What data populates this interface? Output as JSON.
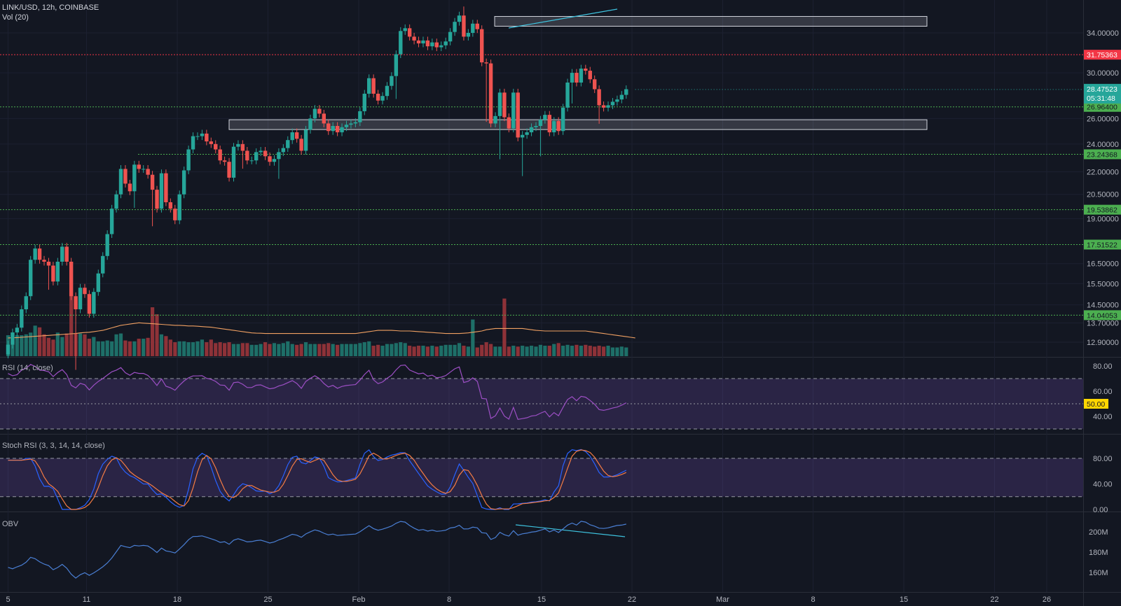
{
  "header": {
    "symbol": "LINK/USD, 12h, COINBASE",
    "volume_label": "Vol (20)"
  },
  "colors": {
    "up": "#26a69a",
    "down": "#ef5350",
    "up_vol": "#1e6f68",
    "down_vol": "#8e3238",
    "ma": "#f0a062",
    "rsi": "#9c4fc4",
    "stoch_k": "#2962ff",
    "stoch_d": "#f57c44",
    "obv": "#4a7fd4",
    "support": "#4caf50",
    "resistance": "#f23645",
    "price_tag": "#26a69a",
    "zone": "#d1d4dc",
    "divergence": "#3ec4e0",
    "band": "#7e57c2",
    "rsi_mid_tag": "#ffd600"
  },
  "chart_data": [
    {
      "type": "candlestick",
      "symbol": "LINK/USD",
      "interval": "12h",
      "exchange": "COINBASE",
      "x_ticks": [
        "5",
        "11",
        "18",
        "25",
        "Feb",
        "8",
        "15",
        "22",
        "Mar",
        "8",
        "15",
        "22",
        "26"
      ],
      "y_ticks": [
        "34.00000",
        "30.00000",
        "26.00000",
        "24.00000",
        "22.00000",
        "20.50000",
        "19.00000",
        "16.50000",
        "15.50000",
        "14.50000",
        "13.70000",
        "12.90000"
      ],
      "y_scale": "log",
      "horizontal_levels": [
        {
          "price": "31.75363",
          "kind": "resistance"
        },
        {
          "price": "26.96400",
          "kind": "support"
        },
        {
          "price": "23.24368",
          "kind": "support"
        },
        {
          "price": "19.53862",
          "kind": "support"
        },
        {
          "price": "17.51522",
          "kind": "support"
        },
        {
          "price": "14.04053",
          "kind": "support"
        }
      ],
      "zones": [
        {
          "low": 35.0,
          "high": 35.8
        },
        {
          "low": 25.2,
          "high": 25.9
        }
      ],
      "current_price": "28.47523",
      "countdown": "05:31:48",
      "closes": [
        12.8,
        13.3,
        13.5,
        14.3,
        14.9,
        16.7,
        17.3,
        16.7,
        16.6,
        16.4,
        15.6,
        16.6,
        17.4,
        16.6,
        14.9,
        14.3,
        15.3,
        15.0,
        14.1,
        15.1,
        16.0,
        16.9,
        18.1,
        19.6,
        20.5,
        22.2,
        21.2,
        20.7,
        22.5,
        22.2,
        22.2,
        21.8,
        20.8,
        19.6,
        21.9,
        20.0,
        19.6,
        18.9,
        20.5,
        22.1,
        23.6,
        24.6,
        24.6,
        24.8,
        24.2,
        24.0,
        23.6,
        22.8,
        22.7,
        21.6,
        23.8,
        24.0,
        23.5,
        22.8,
        22.8,
        23.4,
        23.5,
        23.1,
        22.7,
        22.9,
        23.4,
        23.7,
        24.3,
        24.9,
        24.4,
        23.5,
        25.1,
        26.0,
        26.8,
        26.4,
        25.6,
        25.0,
        25.4,
        24.9,
        25.3,
        25.5,
        25.6,
        25.7,
        26.6,
        28.1,
        29.5,
        28.1,
        27.5,
        27.9,
        28.8,
        29.7,
        31.8,
        34.2,
        34.5,
        33.6,
        33.2,
        32.9,
        33.2,
        32.6,
        33.0,
        32.5,
        32.7,
        33.1,
        34.1,
        35.2,
        35.9,
        33.6,
        34.0,
        35.0,
        34.4,
        31.0,
        30.9,
        25.6,
        26.2,
        28.2,
        26.1,
        25.2,
        28.2,
        24.5,
        24.7,
        24.9,
        25.3,
        25.4,
        25.9,
        26.3,
        24.9,
        25.8,
        25.0,
        26.9,
        29.1,
        30.0,
        29.1,
        30.4,
        30.2,
        29.4,
        28.5,
        27.1,
        26.9,
        27.1,
        27.4,
        27.6,
        28.0,
        28.5
      ],
      "volume_ma": [
        14.5,
        14.6,
        14.8,
        15.0,
        15.3,
        15.5,
        15.8,
        16.0,
        16.3,
        16.5,
        16.8,
        17.0,
        17.3,
        17.5,
        17.8,
        18.0,
        18.5,
        18.8,
        19.0,
        19.5,
        20.0,
        20.5,
        21.5,
        22.5,
        23.5,
        24.5,
        25.0,
        25.5,
        26.0,
        26.5,
        26.2,
        26.0,
        25.8,
        25.5,
        25.3,
        25.0,
        24.8,
        24.5,
        24.5,
        24.3,
        24.0,
        24.0,
        23.8,
        23.5,
        23.2,
        23.0,
        22.5,
        22.0,
        21.5,
        21.0,
        20.5,
        20.0,
        19.5,
        19.0,
        18.5,
        18.3,
        18.2,
        18.0,
        18.0,
        18.0,
        18.0,
        18.0,
        18.0,
        18.0,
        18.0,
        18.0,
        18.0,
        18.0,
        18.0,
        18.0,
        18.0,
        18.0,
        18.0,
        18.0,
        18.0,
        18.0,
        18.0,
        18.0,
        18.5,
        19.0,
        19.5,
        20.0,
        20.5,
        20.5,
        20.5,
        20.5,
        20.3,
        20.0,
        20.0,
        20.0,
        19.8,
        19.5,
        19.3,
        19.0,
        18.8,
        18.5,
        18.3,
        18.0,
        18.0,
        18.0,
        18.0,
        18.2,
        18.5,
        19.0,
        19.5,
        20.0,
        21.0,
        21.5,
        22.0,
        22.0,
        22.0,
        22.0,
        22.0,
        22.0,
        22.0,
        21.5,
        21.0,
        20.5,
        20.3,
        20.0,
        20.0,
        20.0,
        20.0,
        20.0,
        20.0,
        20.0,
        20.0,
        20.0,
        20.0,
        19.5,
        19.0,
        18.5,
        18.0,
        17.5,
        17.0,
        16.5,
        16.0,
        15.5,
        15.0,
        14.5
      ]
    },
    {
      "type": "line",
      "name": "RSI (14, close)",
      "y_ticks": [
        "80.00",
        "60.00",
        "40.00"
      ],
      "mid_label": "50.00",
      "band": [
        30,
        70
      ],
      "values": [
        74.0,
        72.3,
        73.1,
        76.7,
        78.2,
        81.2,
        79.6,
        76.7,
        76.4,
        75.4,
        71.6,
        74.8,
        77.1,
        73.2,
        64.6,
        62.6,
        66.2,
        65.1,
        61.0,
        64.8,
        67.7,
        70.0,
        72.8,
        75.4,
        76.7,
        78.7,
        74.6,
        72.6,
        74.9,
        74.1,
        74.1,
        72.5,
        68.9,
        64.5,
        69.7,
        63.9,
        62.7,
        60.8,
        64.7,
        68.1,
        70.6,
        72.1,
        72.1,
        72.3,
        70.2,
        69.4,
        67.8,
        64.9,
        64.6,
        60.8,
        66.8,
        67.2,
        65.5,
        62.9,
        62.9,
        64.7,
        65.0,
        63.4,
        61.9,
        62.5,
        64.1,
        65.1,
        66.8,
        68.4,
        66.1,
        62.2,
        67.7,
        70.2,
        72.2,
        70.0,
        66.1,
        63.3,
        64.6,
        62.3,
        63.8,
        64.5,
        64.9,
        65.2,
        68.8,
        73.3,
        76.6,
        69.0,
        66.0,
        67.3,
        70.2,
        72.6,
        76.9,
        80.4,
        80.8,
        76.8,
        75.2,
        73.8,
        74.4,
        71.9,
        72.7,
        70.6,
        71.1,
        72.4,
        75.1,
        77.8,
        79.3,
        66.9,
        67.9,
        70.6,
        67.7,
        54.3,
        53.9,
        38.4,
        40.4,
        46.6,
        40.2,
        37.8,
        47.1,
        37.6,
        38.2,
        38.9,
        40.3,
        40.7,
        42.5,
        44.0,
        39.6,
        43.0,
        40.5,
        47.1,
        53.4,
        55.6,
        52.4,
        55.9,
        55.2,
        52.6,
        49.6,
        45.4,
        44.8,
        45.6,
        46.6,
        47.4,
        48.9,
        50.7
      ]
    },
    {
      "type": "line",
      "name": "Stoch RSI (3, 3, 14, 14, close)",
      "y_ticks": [
        "80.00",
        "40.00",
        "0.00"
      ],
      "band": [
        20,
        80
      ],
      "series": [
        {
          "values": [
            77.0,
            77.0,
            77.0,
            77.0,
            79.9,
            80.0,
            68.0,
            48.0,
            36.2,
            36.3,
            32.4,
            16.5,
            0.0,
            0.0,
            0.0,
            0.0,
            2.6,
            6.6,
            15.3,
            32.0,
            56.0,
            70.8,
            78.5,
            83.4,
            80.7,
            66.7,
            58.4,
            52.9,
            49.9,
            44.9,
            39.8,
            39.9,
            30.7,
            23.5,
            24.3,
            19.1,
            12.2,
            6.6,
            3.3,
            6.3,
            31.5,
            63.6,
            81.6,
            87.8,
            84.1,
            66.4,
            45.5,
            28.3,
            19.2,
            13.3,
            23.0,
            34.0,
            40.2,
            38.1,
            33.9,
            29.0,
            28.2,
            28.8,
            24.4,
            28.0,
            37.1,
            52.4,
            70.1,
            81.6,
            83.4,
            73.3,
            71.3,
            76.6,
            82.3,
            80.2,
            67.6,
            49.7,
            45.9,
            43.1,
            43.4,
            45.3,
            47.2,
            49.3,
            70.6,
            88.0,
            93.3,
            82.9,
            76.6,
            78.2,
            82.1,
            85.0,
            86.6,
            88.9,
            88.7,
            76.2,
            66.3,
            56.2,
            46.4,
            36.7,
            31.7,
            27.5,
            24.0,
            24.2,
            35.2,
            54.2,
            71.2,
            61.3,
            50.2,
            40.7,
            21.6,
            3.2,
            0.7,
            0.0,
            0.0,
            2.6,
            0.0,
            0.0,
            8.6,
            8.8,
            9.6,
            10.2,
            11.5,
            12.1,
            13.1,
            15.2,
            13.3,
            27.4,
            37.0,
            68.5,
            87.8,
            93.5,
            92.1,
            93.8,
            90.6,
            83.2,
            71.5,
            57.9,
            50.9,
            50.9,
            51.9,
            54.4,
            57.9,
            61.4
          ]
        },
        {
          "values": [
            77.0,
            77.0,
            77.0,
            77.0,
            78.0,
            78.9,
            75.9,
            65.3,
            50.7,
            40.2,
            35.0,
            28.4,
            16.3,
            5.5,
            0.0,
            0.0,
            0.9,
            3.1,
            8.2,
            18.0,
            34.4,
            52.9,
            68.4,
            77.6,
            80.9,
            76.9,
            68.6,
            59.3,
            53.7,
            49.1,
            44.9,
            41.5,
            36.8,
            31.4,
            26.2,
            22.3,
            18.5,
            12.6,
            7.4,
            5.4,
            13.7,
            33.8,
            58.9,
            77.7,
            84.5,
            79.4,
            65.3,
            46.7,
            31.0,
            20.3,
            18.5,
            23.4,
            32.4,
            37.4,
            37.4,
            33.7,
            30.4,
            28.7,
            27.1,
            27.1,
            29.8,
            39.2,
            53.2,
            68.0,
            78.4,
            79.4,
            76.0,
            73.7,
            76.7,
            79.7,
            76.7,
            65.8,
            54.4,
            46.2,
            44.1,
            43.9,
            45.3,
            47.3,
            55.7,
            69.3,
            84.0,
            88.1,
            84.3,
            79.2,
            79.0,
            81.8,
            84.6,
            86.8,
            88.1,
            84.6,
            77.1,
            66.2,
            56.3,
            46.4,
            38.3,
            32.0,
            27.7,
            25.2,
            27.8,
            37.9,
            53.5,
            62.2,
            60.9,
            50.7,
            37.5,
            21.8,
            8.5,
            1.3,
            0.2,
            0.9,
            0.9,
            0.9,
            2.9,
            5.8,
            9.0,
            9.5,
            10.4,
            11.3,
            12.2,
            13.5,
            13.9,
            18.6,
            25.9,
            44.3,
            64.4,
            83.3,
            91.1,
            93.1,
            92.2,
            89.2,
            81.8,
            70.9,
            60.1,
            53.2,
            51.2,
            52.4,
            54.7,
            57.9
          ]
        }
      ]
    },
    {
      "type": "line",
      "name": "OBV",
      "y_ticks": [
        "200M",
        "180M",
        "160M"
      ],
      "values": [
        165.0,
        163.6,
        165.5,
        167.1,
        170.1,
        174.9,
        173.5,
        170.4,
        168.2,
        166.7,
        162.6,
        164.8,
        167.9,
        164.2,
        158.2,
        154.4,
        157.7,
        159.7,
        157.1,
        159.6,
        162.4,
        165.5,
        169.3,
        174.2,
        180.4,
        186.6,
        185.3,
        184.4,
        186.6,
        186.1,
        186.6,
        186.1,
        183.2,
        179.6,
        183.9,
        181.2,
        180.4,
        179.2,
        183.0,
        187.4,
        192.2,
        195.4,
        195.5,
        196.0,
        194.6,
        193.2,
        191.7,
        189.6,
        190.3,
        187.7,
        191.8,
        193.2,
        191.7,
        190.1,
        190.4,
        191.4,
        191.8,
        190.5,
        189.0,
        190.1,
        192.1,
        193.6,
        195.6,
        197.6,
        196.7,
        194.6,
        197.9,
        200.1,
        201.9,
        200.7,
        198.6,
        197.0,
        197.8,
        196.4,
        196.8,
        197.1,
        197.5,
        197.8,
        200.1,
        203.2,
        206.1,
        203.2,
        201.6,
        202.6,
        204.1,
        205.7,
        208.4,
        210.3,
        209.6,
        206.2,
        203.6,
        201.6,
        202.3,
        200.7,
        201.7,
        200.5,
        200.9,
        201.6,
        203.8,
        204.5,
        206.5,
        202.8,
        202.9,
        204.6,
        203.9,
        199.1,
        198.7,
        192.5,
        194.3,
        199.5,
        197.1,
        195.8,
        201.1,
        196.7,
        198.1,
        198.7,
        199.7,
        200.3,
        201.6,
        202.9,
        199.9,
        201.8,
        199.3,
        202.8,
        206.6,
        208.6,
        206.7,
        210.4,
        209.6,
        206.9,
        205.6,
        203.6,
        203.3,
        203.9,
        205.2,
        206.3,
        206.6,
        207.6
      ]
    }
  ]
}
